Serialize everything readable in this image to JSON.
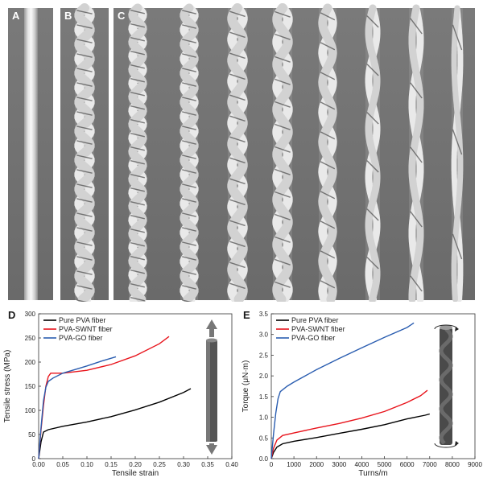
{
  "panels": {
    "a": {
      "label": "A"
    },
    "b": {
      "label": "B"
    },
    "c": {
      "label": "C"
    },
    "d": {
      "label": "D"
    },
    "e": {
      "label": "E"
    }
  },
  "chart_data": [
    {
      "panel": "D",
      "type": "line",
      "xlabel": "Tensile strain",
      "ylabel": "Tensile stress (MPa)",
      "xlim": [
        0,
        0.4
      ],
      "ylim": [
        0,
        300
      ],
      "xticks": [
        "0.00",
        "0.05",
        "0.10",
        "0.15",
        "0.20",
        "0.25",
        "0.30",
        "0.35",
        "0.40"
      ],
      "yticks": [
        "0",
        "50",
        "100",
        "150",
        "200",
        "250",
        "300"
      ],
      "legend_position": "top-left",
      "series": [
        {
          "name": "Pure PVA fiber",
          "color": "#000000",
          "points": [
            [
              0,
              0
            ],
            [
              0.005,
              35
            ],
            [
              0.01,
              55
            ],
            [
              0.02,
              60
            ],
            [
              0.05,
              67
            ],
            [
              0.1,
              76
            ],
            [
              0.15,
              87
            ],
            [
              0.2,
              101
            ],
            [
              0.25,
              117
            ],
            [
              0.3,
              137
            ],
            [
              0.315,
              145
            ]
          ]
        },
        {
          "name": "PVA-SWNT fiber",
          "color": "#e8141c",
          "points": [
            [
              0,
              0
            ],
            [
              0.005,
              60
            ],
            [
              0.01,
              110
            ],
            [
              0.015,
              150
            ],
            [
              0.02,
              170
            ],
            [
              0.025,
              177
            ],
            [
              0.05,
              177
            ],
            [
              0.1,
              183
            ],
            [
              0.15,
              195
            ],
            [
              0.2,
              213
            ],
            [
              0.25,
              238
            ],
            [
              0.27,
              253
            ]
          ]
        },
        {
          "name": "PVA-GO fiber",
          "color": "#2a5db0",
          "points": [
            [
              0,
              0
            ],
            [
              0.005,
              65
            ],
            [
              0.01,
              120
            ],
            [
              0.015,
              148
            ],
            [
              0.02,
              160
            ],
            [
              0.03,
              167
            ],
            [
              0.05,
              177
            ],
            [
              0.08,
              186
            ],
            [
              0.1,
              192
            ],
            [
              0.13,
              202
            ],
            [
              0.16,
              211
            ]
          ]
        }
      ]
    },
    {
      "panel": "E",
      "type": "line",
      "xlabel": "Turns/m",
      "ylabel": "Torque (μN·m)",
      "xlim": [
        0,
        9000
      ],
      "ylim": [
        0,
        3.5
      ],
      "xticks": [
        "0",
        "1000",
        "2000",
        "3000",
        "4000",
        "5000",
        "6000",
        "7000",
        "8000",
        "9000"
      ],
      "yticks": [
        "0.0",
        "0.5",
        "1.0",
        "1.5",
        "2.0",
        "2.5",
        "3.0",
        "3.5"
      ],
      "legend_position": "top-left",
      "series": [
        {
          "name": "Pure PVA fiber",
          "color": "#000000",
          "points": [
            [
              0,
              0
            ],
            [
              100,
              0.15
            ],
            [
              250,
              0.28
            ],
            [
              500,
              0.36
            ],
            [
              1000,
              0.42
            ],
            [
              2000,
              0.51
            ],
            [
              3000,
              0.61
            ],
            [
              4000,
              0.71
            ],
            [
              5000,
              0.82
            ],
            [
              6000,
              0.96
            ],
            [
              6800,
              1.05
            ],
            [
              7000,
              1.08
            ]
          ]
        },
        {
          "name": "PVA-SWNT fiber",
          "color": "#e8141c",
          "points": [
            [
              0,
              0
            ],
            [
              100,
              0.25
            ],
            [
              250,
              0.45
            ],
            [
              500,
              0.56
            ],
            [
              1000,
              0.62
            ],
            [
              2000,
              0.74
            ],
            [
              3000,
              0.85
            ],
            [
              4000,
              0.98
            ],
            [
              5000,
              1.14
            ],
            [
              6000,
              1.36
            ],
            [
              6600,
              1.52
            ],
            [
              6900,
              1.65
            ]
          ]
        },
        {
          "name": "PVA-GO fiber",
          "color": "#2a5db0",
          "points": [
            [
              0,
              0
            ],
            [
              100,
              0.6
            ],
            [
              200,
              1.1
            ],
            [
              300,
              1.45
            ],
            [
              400,
              1.62
            ],
            [
              700,
              1.75
            ],
            [
              1000,
              1.85
            ],
            [
              2000,
              2.15
            ],
            [
              3000,
              2.42
            ],
            [
              4000,
              2.68
            ],
            [
              5000,
              2.93
            ],
            [
              6000,
              3.17
            ],
            [
              6300,
              3.28
            ]
          ]
        }
      ]
    }
  ]
}
